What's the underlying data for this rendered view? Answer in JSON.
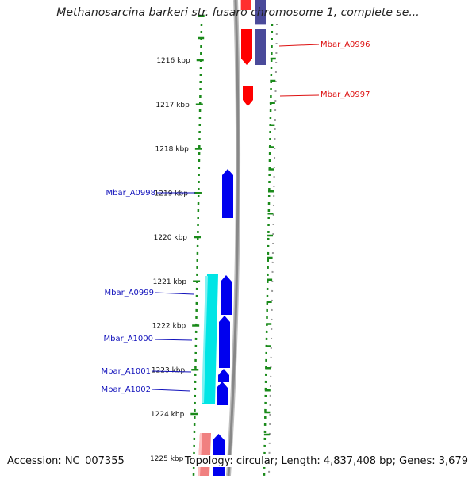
{
  "title": "Methanosarcina barkeri str. fusaro chromosome 1, complete se...",
  "footer": {
    "accession": "Accession: NC_007355",
    "topology": "Topology: circular; Length: 4,837,408 bp; Genes: 3,679"
  },
  "ruler": {
    "ticks": [
      {
        "label": "1216 kbp",
        "kbp": 1216
      },
      {
        "label": "1217 kbp",
        "kbp": 1217
      },
      {
        "label": "1218 kbp",
        "kbp": 1218
      },
      {
        "label": "1219 kbp",
        "kbp": 1219
      },
      {
        "label": "1220 kbp",
        "kbp": 1220
      },
      {
        "label": "1221 kbp",
        "kbp": 1221
      },
      {
        "label": "1222 kbp",
        "kbp": 1222
      },
      {
        "label": "1223 kbp",
        "kbp": 1223
      },
      {
        "label": "1224 kbp",
        "kbp": 1224
      },
      {
        "label": "1225 kbp",
        "kbp": 1225
      }
    ]
  },
  "genes": [
    {
      "label": "Mbar_A0996",
      "color": "#dd1111"
    },
    {
      "label": "Mbar_A0997",
      "color": "#dd1111"
    },
    {
      "label": "Mbar_A0998",
      "color": "#1111bb"
    },
    {
      "label": "Mbar_A0999",
      "color": "#1111bb"
    },
    {
      "label": "Mbar_A1000",
      "color": "#1111bb"
    },
    {
      "label": "Mbar_A1001",
      "color": "#1111bb"
    },
    {
      "label": "Mbar_A1002",
      "color": "#1111bb"
    }
  ],
  "colors": {
    "ruler_dots": "#1a8a1a",
    "forward_gene": "#ff0000",
    "reverse_gene": "#0000ee",
    "cyan_feature": "#00e5e5",
    "purple_feature": "#4a4a9a",
    "chromosome": "#888888"
  }
}
